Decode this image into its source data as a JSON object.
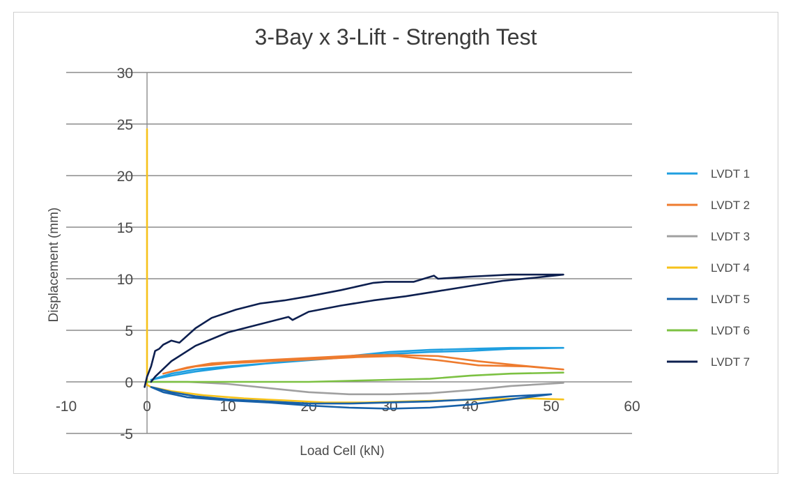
{
  "chart_data": {
    "type": "line",
    "title": "3-Bay x 3-Lift - Strength Test",
    "xlabel": "Load Cell (kN)",
    "ylabel": "Displacement (mm)",
    "xlim": [
      -10,
      60
    ],
    "ylim": [
      -5,
      30
    ],
    "xticks": [
      -10,
      0,
      10,
      20,
      30,
      40,
      50,
      60
    ],
    "yticks": [
      -5,
      0,
      5,
      10,
      15,
      20,
      25,
      30
    ],
    "grid": true,
    "legend_position": "right",
    "series": [
      {
        "name": "LVDT 1",
        "color": "#1f9fe0",
        "x": [
          0.5,
          3,
          6,
          10,
          15,
          20,
          25,
          30,
          35,
          40,
          45,
          51.5,
          45,
          40,
          35,
          30,
          25,
          20,
          15,
          10,
          6,
          3,
          0.5
        ],
        "y": [
          0.2,
          0.8,
          1.2,
          1.5,
          1.8,
          2.1,
          2.5,
          2.9,
          3.1,
          3.2,
          3.3,
          3.3,
          3.2,
          3.0,
          2.9,
          2.7,
          2.4,
          2.1,
          1.8,
          1.4,
          1.0,
          0.6,
          0.2
        ]
      },
      {
        "name": "LVDT 2",
        "color": "#ee7b2e",
        "x": [
          2,
          5,
          8,
          12,
          17,
          22,
          27,
          31,
          36,
          41,
          46,
          51.5,
          47,
          41,
          36,
          31,
          26,
          21,
          15,
          10,
          6,
          3,
          2
        ],
        "y": [
          0.8,
          1.4,
          1.8,
          2.0,
          2.2,
          2.4,
          2.6,
          2.6,
          2.5,
          2.0,
          1.6,
          1.2,
          1.5,
          1.6,
          2.1,
          2.5,
          2.4,
          2.2,
          2.0,
          1.8,
          1.5,
          1.0,
          0.8
        ]
      },
      {
        "name": "LVDT 3",
        "color": "#a0a0a0",
        "x": [
          0,
          5,
          10,
          15,
          20,
          25,
          30,
          35,
          40,
          45,
          51.5
        ],
        "y": [
          0,
          0,
          -0.2,
          -0.6,
          -1.0,
          -1.2,
          -1.2,
          -1.1,
          -0.8,
          -0.4,
          -0.1
        ]
      },
      {
        "name": "LVDT 4",
        "color": "#f6c21a",
        "x": [
          0,
          0,
          0,
          0.5,
          3,
          7,
          12,
          17,
          22,
          27,
          32,
          37,
          42,
          47,
          51.5
        ],
        "y": [
          0,
          24.5,
          -0.3,
          -0.5,
          -0.9,
          -1.3,
          -1.6,
          -1.8,
          -2.0,
          -2.0,
          -1.9,
          -1.8,
          -1.7,
          -1.6,
          -1.7
        ]
      },
      {
        "name": "LVDT 5",
        "color": "#1760a8",
        "x": [
          0.5,
          3,
          6,
          10,
          15,
          20,
          25,
          30,
          35,
          40,
          45,
          50,
          45,
          40,
          35,
          30,
          25,
          20,
          15,
          10,
          5,
          2,
          0.5
        ],
        "y": [
          -0.5,
          -1.0,
          -1.4,
          -1.7,
          -1.9,
          -2.1,
          -2.1,
          -2.0,
          -1.9,
          -1.7,
          -1.4,
          -1.2,
          -1.7,
          -2.2,
          -2.5,
          -2.6,
          -2.5,
          -2.3,
          -2.0,
          -1.8,
          -1.5,
          -1.0,
          -0.5
        ]
      },
      {
        "name": "LVDT 6",
        "color": "#7cc142",
        "x": [
          0,
          5,
          10,
          15,
          20,
          25,
          30,
          35,
          40,
          45,
          51.5
        ],
        "y": [
          0,
          0,
          0,
          0,
          0,
          0.1,
          0.2,
          0.3,
          0.6,
          0.8,
          0.9
        ]
      },
      {
        "name": "LVDT 7",
        "color": "#0d1f4f",
        "x": [
          -0.3,
          0,
          0.5,
          1,
          1.5,
          2,
          3,
          4,
          6,
          8,
          11,
          14,
          17,
          20,
          24,
          28,
          29.5,
          33,
          35.5,
          36,
          40,
          45,
          51.5,
          48,
          44,
          40,
          36,
          32,
          28,
          24,
          20,
          18,
          17.5,
          14,
          10,
          6,
          3,
          1,
          0.5
        ],
        "y": [
          -0.5,
          0.5,
          1.5,
          3.0,
          3.2,
          3.6,
          4.0,
          3.8,
          5.2,
          6.2,
          7.0,
          7.6,
          7.9,
          8.3,
          8.9,
          9.6,
          9.7,
          9.7,
          10.3,
          10.0,
          10.2,
          10.4,
          10.4,
          10.1,
          9.8,
          9.3,
          8.8,
          8.3,
          7.9,
          7.4,
          6.8,
          6.0,
          6.3,
          5.6,
          4.8,
          3.5,
          2.0,
          0.5,
          0
        ]
      }
    ]
  }
}
